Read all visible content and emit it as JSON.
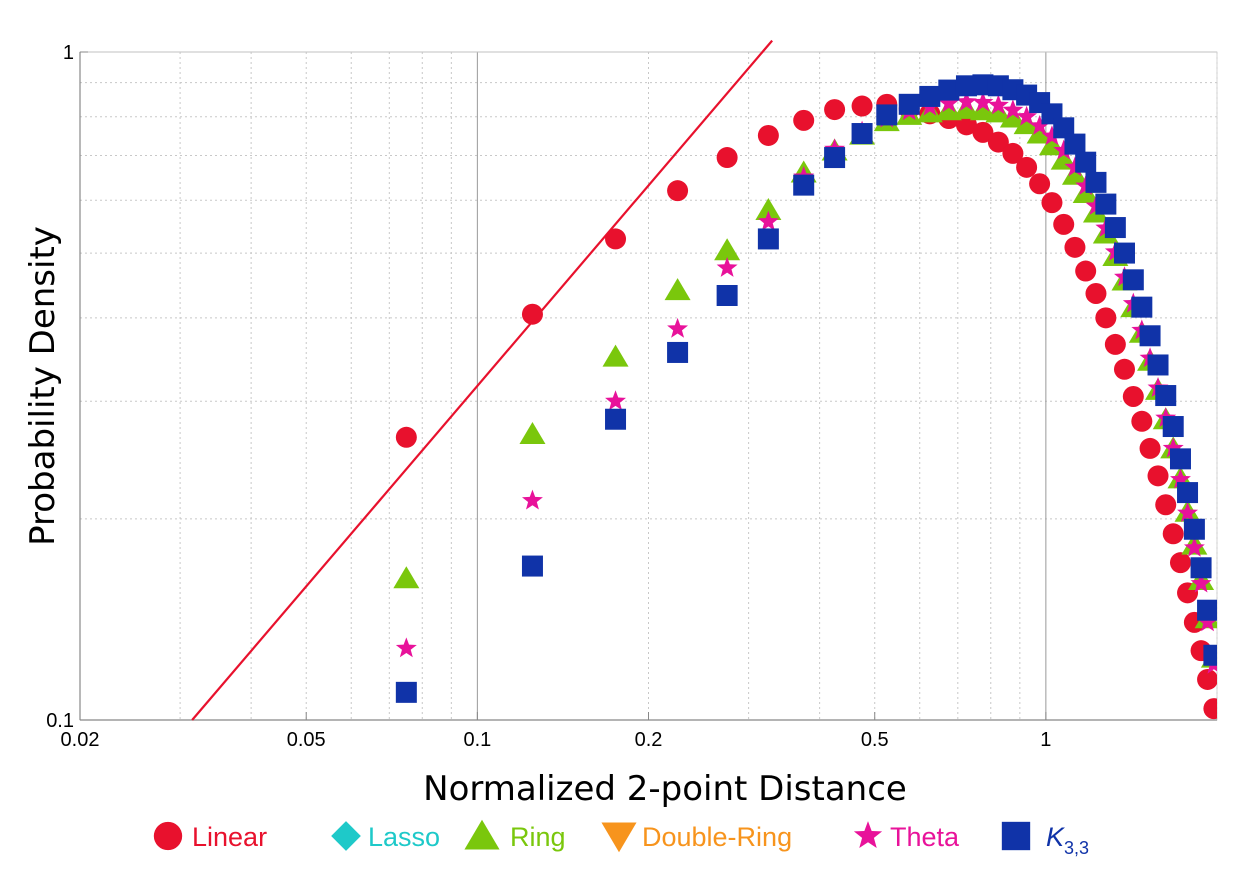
{
  "chart_data": {
    "type": "scatter",
    "title": "",
    "xlabel": "Normalized 2-point Distance",
    "ylabel": "Probability Density",
    "xscale": "log",
    "yscale": "log",
    "xlim": [
      0.02,
      2.0
    ],
    "ylim": [
      0.1,
      1.0
    ],
    "grid": true,
    "legend_position": "bottom",
    "x_ticks": [
      {
        "value": 0.02,
        "label": "0.02"
      },
      {
        "value": 0.05,
        "label": "0.05"
      },
      {
        "value": 0.1,
        "label": "0.1"
      },
      {
        "value": 0.2,
        "label": "0.2"
      },
      {
        "value": 0.5,
        "label": "0.5"
      },
      {
        "value": 1,
        "label": "1"
      }
    ],
    "y_ticks": [
      {
        "value": 0.1,
        "label": "0.1"
      },
      {
        "value": 1,
        "label": "1"
      }
    ],
    "reference_line": {
      "name": "slope-1 reference",
      "color": "#e8112d",
      "points": [
        [
          0.0315,
          0.1
        ],
        [
          0.33,
          1.04
        ]
      ]
    },
    "series": [
      {
        "name": "Linear",
        "color": "#e8112d",
        "marker": "circle",
        "x": [
          0.075,
          0.125,
          0.175,
          0.225,
          0.275,
          0.325,
          0.375,
          0.425,
          0.475,
          0.525,
          0.575,
          0.625,
          0.675,
          0.725,
          0.775,
          0.825,
          0.875,
          0.925,
          0.975,
          1.025,
          1.075,
          1.125,
          1.175,
          1.225,
          1.275,
          1.325,
          1.375,
          1.425,
          1.475,
          1.525,
          1.575,
          1.625,
          1.675,
          1.725,
          1.775,
          1.825,
          1.875,
          1.925,
          1.975
        ],
        "y": [
          0.265,
          0.405,
          0.525,
          0.62,
          0.695,
          0.75,
          0.79,
          0.82,
          0.83,
          0.835,
          0.822,
          0.808,
          0.795,
          0.778,
          0.758,
          0.733,
          0.705,
          0.672,
          0.635,
          0.595,
          0.552,
          0.51,
          0.47,
          0.435,
          0.4,
          0.365,
          0.335,
          0.305,
          0.28,
          0.255,
          0.232,
          0.21,
          0.19,
          0.172,
          0.155,
          0.14,
          0.127,
          0.115,
          0.104
        ]
      },
      {
        "name": "Lasso",
        "color": "#1ec9c9",
        "marker": "diamond",
        "x": [],
        "y": []
      },
      {
        "name": "Ring",
        "color": "#7ac70c",
        "marker": "triangle",
        "x": [
          0.075,
          0.125,
          0.175,
          0.225,
          0.275,
          0.325,
          0.375,
          0.425,
          0.475,
          0.525,
          0.575,
          0.625,
          0.675,
          0.725,
          0.775,
          0.825,
          0.875,
          0.925,
          0.975,
          1.025,
          1.075,
          1.125,
          1.175,
          1.225,
          1.275,
          1.325,
          1.375,
          1.425,
          1.475,
          1.525,
          1.575,
          1.625,
          1.675,
          1.725,
          1.775,
          1.825,
          1.875,
          1.925,
          1.975
        ],
        "y": [
          0.163,
          0.268,
          0.35,
          0.44,
          0.505,
          0.58,
          0.66,
          0.712,
          0.752,
          0.788,
          0.805,
          0.812,
          0.818,
          0.822,
          0.818,
          0.812,
          0.798,
          0.78,
          0.755,
          0.725,
          0.69,
          0.655,
          0.615,
          0.575,
          0.535,
          0.495,
          0.455,
          0.415,
          0.38,
          0.345,
          0.312,
          0.282,
          0.255,
          0.23,
          0.205,
          0.183,
          0.162,
          0.142,
          0.124
        ]
      },
      {
        "name": "Double-Ring",
        "color": "#f7941d",
        "marker": "inverted-triangle",
        "x": [],
        "y": []
      },
      {
        "name": "Theta",
        "color": "#e8129a",
        "marker": "star",
        "x": [
          0.075,
          0.125,
          0.175,
          0.225,
          0.275,
          0.325,
          0.375,
          0.425,
          0.475,
          0.525,
          0.575,
          0.625,
          0.675,
          0.725,
          0.775,
          0.825,
          0.875,
          0.925,
          0.975,
          1.025,
          1.075,
          1.125,
          1.175,
          1.225,
          1.275,
          1.325,
          1.375,
          1.425,
          1.475,
          1.525,
          1.575,
          1.625,
          1.675,
          1.725,
          1.775,
          1.825,
          1.875,
          1.925,
          1.975
        ],
        "y": [
          0.128,
          0.213,
          0.3,
          0.385,
          0.475,
          0.557,
          0.65,
          0.715,
          0.76,
          0.795,
          0.815,
          0.828,
          0.838,
          0.842,
          0.84,
          0.832,
          0.818,
          0.8,
          0.775,
          0.748,
          0.712,
          0.672,
          0.63,
          0.588,
          0.545,
          0.502,
          0.46,
          0.42,
          0.383,
          0.348,
          0.314,
          0.283,
          0.255,
          0.229,
          0.204,
          0.181,
          0.16,
          0.14,
          0.121
        ]
      },
      {
        "name": "K3,3",
        "label_main": "K",
        "label_sub": "3,3",
        "color": "#1033a8",
        "marker": "square",
        "x": [
          0.075,
          0.125,
          0.175,
          0.225,
          0.275,
          0.325,
          0.375,
          0.425,
          0.475,
          0.525,
          0.575,
          0.625,
          0.675,
          0.725,
          0.775,
          0.825,
          0.875,
          0.925,
          0.975,
          1.025,
          1.075,
          1.125,
          1.175,
          1.225,
          1.275,
          1.325,
          1.375,
          1.425,
          1.475,
          1.525,
          1.575,
          1.625,
          1.675,
          1.725,
          1.775,
          1.825,
          1.875,
          1.925,
          1.975
        ],
        "y": [
          0.11,
          0.17,
          0.282,
          0.355,
          0.432,
          0.525,
          0.632,
          0.695,
          0.755,
          0.805,
          0.835,
          0.858,
          0.877,
          0.89,
          0.893,
          0.89,
          0.878,
          0.862,
          0.84,
          0.808,
          0.77,
          0.728,
          0.684,
          0.638,
          0.592,
          0.546,
          0.5,
          0.456,
          0.415,
          0.376,
          0.34,
          0.306,
          0.275,
          0.246,
          0.219,
          0.193,
          0.169,
          0.146,
          0.125
        ]
      }
    ]
  }
}
